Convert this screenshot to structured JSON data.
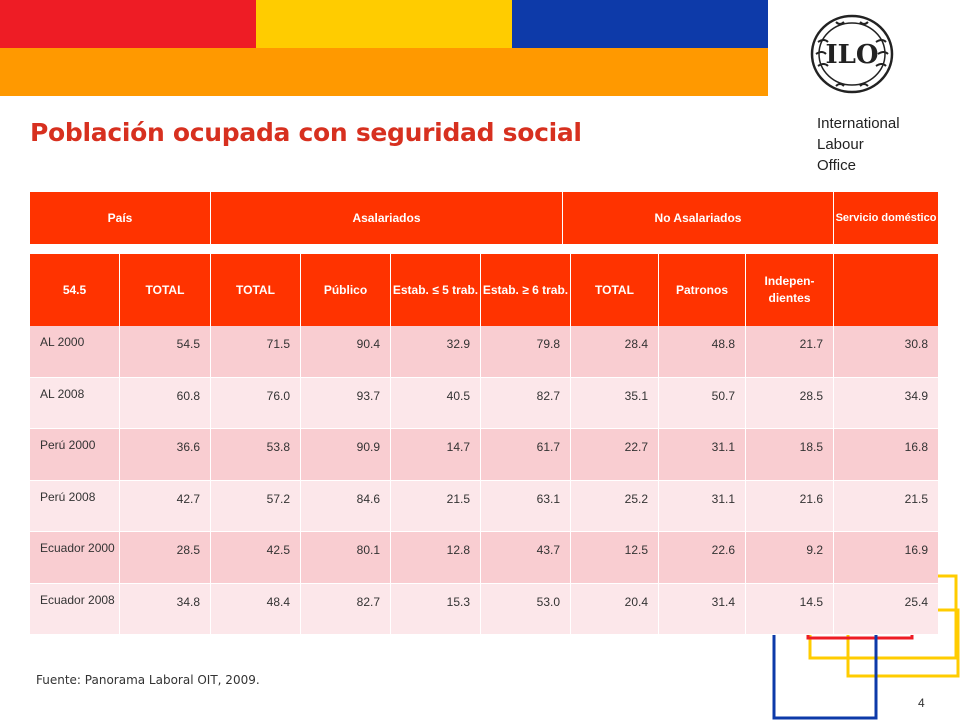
{
  "brand_colors": {
    "red": "#ee1c25",
    "yellow": "#ffcc00",
    "blue": "#0d3aa9",
    "orange": "#ff9900",
    "header": "#ff3300",
    "title": "#d7301f"
  },
  "logo": {
    "icon": "ilo-logo-icon",
    "text": "ILO"
  },
  "org": {
    "line1": "International",
    "line2": "Labour",
    "line3": "Office"
  },
  "title": "Población ocupada con seguridad social",
  "table": {
    "group_headers": [
      "País",
      "Asalariados",
      "No  Asalariados",
      "Servicio doméstico"
    ],
    "sub_headers": [
      "54.5",
      "TOTAL",
      "TOTAL",
      "Público",
      "Estab. ≤ 5 trab.",
      "Estab. ≥ 6 trab.",
      "TOTAL",
      "Patronos",
      "Indepen-dientes",
      ""
    ],
    "rows": [
      {
        "label": "AL 2000",
        "values": [
          "54.5",
          "71.5",
          "90.4",
          "32.9",
          "79.8",
          "28.4",
          "48.8",
          "21.7",
          "30.8"
        ]
      },
      {
        "label": "AL 2008",
        "values": [
          "60.8",
          "76.0",
          "93.7",
          "40.5",
          "82.7",
          "35.1",
          "50.7",
          "28.5",
          "34.9"
        ]
      },
      {
        "label": "Perú 2000",
        "values": [
          "36.6",
          "53.8",
          "90.9",
          "14.7",
          "61.7",
          "22.7",
          "31.1",
          "18.5",
          "16.8"
        ]
      },
      {
        "label": "Perú 2008",
        "values": [
          "42.7",
          "57.2",
          "84.6",
          "21.5",
          "63.1",
          "25.2",
          "31.1",
          "21.6",
          "21.5"
        ]
      },
      {
        "label": "Ecuador 2000",
        "values": [
          "28.5",
          "42.5",
          "80.1",
          "12.8",
          "43.7",
          "12.5",
          "22.6",
          "9.2",
          "16.9"
        ]
      },
      {
        "label": "Ecuador 2008",
        "values": [
          "34.8",
          "48.4",
          "82.7",
          "15.3",
          "53.0",
          "20.4",
          "31.4",
          "14.5",
          "25.4"
        ]
      }
    ]
  },
  "source": "Fuente: Panorama Laboral OIT, 2009.",
  "page_number": "4"
}
